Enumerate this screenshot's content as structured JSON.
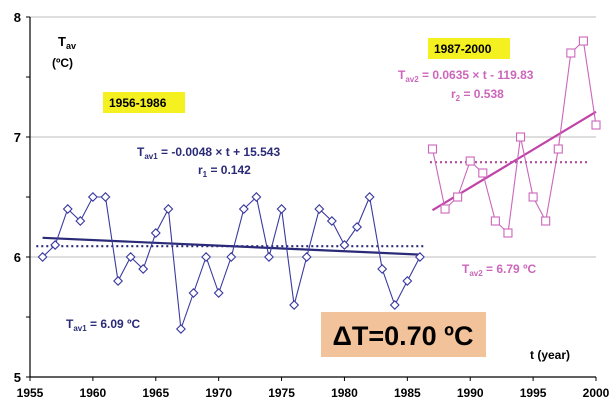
{
  "chart_data": {
    "type": "line",
    "xlim": [
      1955,
      2000
    ],
    "ylim": [
      5,
      8
    ],
    "x_ticks": [
      "1955",
      "1960",
      "1965",
      "1970",
      "1975",
      "1980",
      "1985",
      "1990",
      "1995",
      "2000"
    ],
    "y_ticks": [
      "5",
      "6",
      "7",
      "8"
    ],
    "ylabel": {
      "main": "T",
      "sub": "av",
      "unit": "(ºC)"
    },
    "xlabel": "t (year)",
    "grid": "horizontal",
    "colors": {
      "series1": "#3a3aa0",
      "trend1": "#2a2a78",
      "series2": "#cc66bb",
      "trend2": "#c044a8",
      "mean2": "#b0499c",
      "highlight_yellow": "#f5f020",
      "highlight_orange": "#f2c39a"
    },
    "series": [
      {
        "period": "1956-1986",
        "marker": "diamond",
        "x": [
          1956,
          1957,
          1958,
          1959,
          1960,
          1961,
          1962,
          1963,
          1964,
          1965,
          1966,
          1967,
          1968,
          1969,
          1970,
          1971,
          1972,
          1973,
          1974,
          1975,
          1976,
          1977,
          1978,
          1979,
          1980,
          1981,
          1982,
          1983,
          1984,
          1985,
          1986
        ],
        "y": [
          6.0,
          6.1,
          6.4,
          6.3,
          6.5,
          6.5,
          5.8,
          6.0,
          5.9,
          6.2,
          6.4,
          5.4,
          5.7,
          6.0,
          5.7,
          6.0,
          6.4,
          6.5,
          6.0,
          6.4,
          5.6,
          6.0,
          6.4,
          6.3,
          6.1,
          6.25,
          6.5,
          5.9,
          5.6,
          5.8,
          6.0
        ],
        "trend": {
          "x": [
            1956,
            1986
          ],
          "y": [
            6.16,
            6.02
          ]
        },
        "mean": 6.09,
        "equation_main": "T",
        "equation_sub": "av1",
        "equation_rest": " = -0.0048 × t + 15.543",
        "r_main": "r",
        "r_sub": "1",
        "r_rest": " = 0.142",
        "mean_main": "T",
        "mean_sub": "av1",
        "mean_rest": " = 6.09 ºC"
      },
      {
        "period": "1987-2000",
        "marker": "square",
        "x": [
          1987,
          1988,
          1989,
          1990,
          1991,
          1992,
          1993,
          1994,
          1995,
          1996,
          1997,
          1998,
          1999,
          2000
        ],
        "y": [
          6.9,
          6.4,
          6.5,
          6.8,
          6.7,
          6.3,
          6.2,
          7.0,
          6.5,
          6.3,
          6.9,
          7.7,
          7.8,
          7.1
        ],
        "trend": {
          "x": [
            1987,
            2000
          ],
          "y": [
            6.39,
            7.21
          ]
        },
        "mean": 6.79,
        "equation_main": "T",
        "equation_sub": "av2",
        "equation_rest": " = 0.0635 × t - 119.83",
        "r_main": "r",
        "r_sub": "2",
        "r_rest": " = 0.538",
        "mean_main": "T",
        "mean_sub": "av2",
        "mean_rest": " = 6.79 ºC"
      }
    ],
    "delta_label": "ΔT=0.70 ºC"
  }
}
